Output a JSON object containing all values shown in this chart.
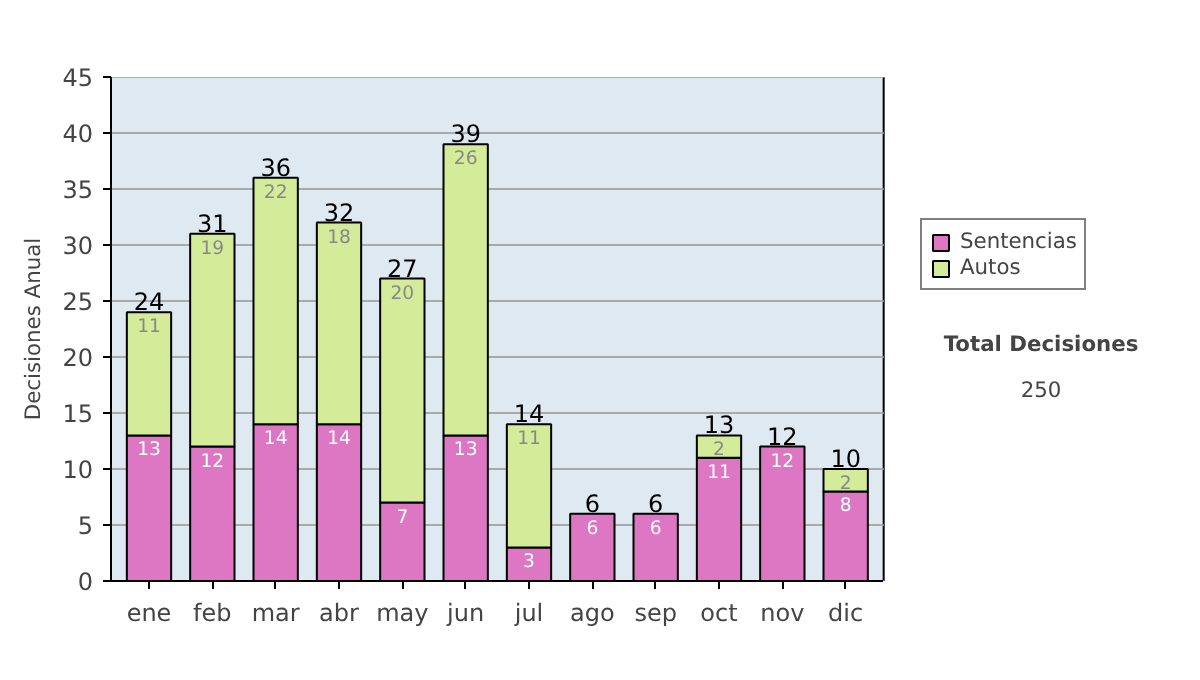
{
  "chart_data": {
    "type": "bar",
    "stacked": true,
    "ylabel": "Decisiones Anual",
    "categories": [
      "ene",
      "feb",
      "mar",
      "abr",
      "may",
      "jun",
      "jul",
      "ago",
      "sep",
      "oct",
      "nov",
      "dic"
    ],
    "series": [
      {
        "name": "Sentencias",
        "color": "#dd77c4",
        "values": [
          13,
          12,
          14,
          14,
          7,
          13,
          3,
          6,
          6,
          11,
          12,
          8
        ],
        "value_labels": [
          "13",
          "12",
          "14",
          "14",
          "7",
          "13",
          "3",
          "6",
          "6",
          "11",
          "12",
          "8"
        ]
      },
      {
        "name": "Autos",
        "color": "#d4ec99",
        "values": [
          11,
          19,
          22,
          18,
          20,
          26,
          11,
          0,
          0,
          2,
          0,
          2
        ],
        "value_labels": [
          "11",
          "19",
          "22",
          "18",
          "20",
          "26",
          "11",
          null,
          null,
          "2",
          null,
          "2"
        ]
      }
    ],
    "totals": [
      "24",
      "31",
      "36",
      "32",
      "27",
      "39",
      "14",
      "6",
      "6",
      "13",
      "12",
      "10"
    ],
    "ylim": [
      0,
      45
    ],
    "yticks": [
      0,
      5,
      10,
      15,
      20,
      25,
      30,
      35,
      40,
      45
    ],
    "grid": "y",
    "legend": "right",
    "annotations": [
      "Total Decisiones",
      "250"
    ]
  }
}
